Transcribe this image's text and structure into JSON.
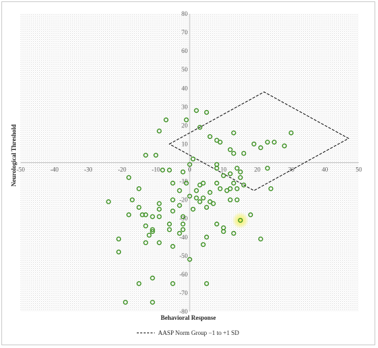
{
  "chart_data": {
    "type": "scatter",
    "title": "",
    "xlabel": "Behavioral Response",
    "ylabel": "Neurological Threshold",
    "xlim": [
      -50,
      50
    ],
    "ylim": [
      -80,
      80
    ],
    "x_ticks": [
      -50,
      -40,
      -30,
      -20,
      -10,
      0,
      10,
      20,
      30,
      40,
      50
    ],
    "y_ticks": [
      -80,
      -70,
      -60,
      -50,
      -40,
      -30,
      -20,
      -10,
      0,
      10,
      20,
      30,
      40,
      50,
      60,
      70,
      80
    ],
    "grid": false,
    "background": "dotted-gray",
    "marker_color": "#3a8f1f",
    "highlight_color": "#f4f27a",
    "legend": {
      "position": "bottom-center",
      "label": "AASP Norm Group −1 to +1 SD"
    },
    "norm_region": {
      "style": "dashed",
      "color": "#000000",
      "vertices": [
        [
          -6,
          10
        ],
        [
          22,
          38
        ],
        [
          47,
          13
        ],
        [
          19,
          -15
        ]
      ]
    },
    "highlighted_point": [
      15,
      -31
    ],
    "points": [
      [
        2,
        28
      ],
      [
        5,
        27
      ],
      [
        -1,
        23
      ],
      [
        -7,
        23
      ],
      [
        3,
        19
      ],
      [
        -9,
        17
      ],
      [
        13,
        16
      ],
      [
        30,
        16
      ],
      [
        6,
        14
      ],
      [
        8,
        12
      ],
      [
        9,
        11
      ],
      [
        25,
        11
      ],
      [
        23,
        11
      ],
      [
        28,
        9
      ],
      [
        19,
        10
      ],
      [
        21,
        8
      ],
      [
        12,
        7
      ],
      [
        13,
        5
      ],
      [
        16,
        5
      ],
      [
        -10,
        4
      ],
      [
        -13,
        4
      ],
      [
        1,
        2
      ],
      [
        0,
        -1
      ],
      [
        8,
        -1
      ],
      [
        8,
        -3
      ],
      [
        14,
        -3
      ],
      [
        23,
        -3
      ],
      [
        -6,
        -4
      ],
      [
        -8,
        -4
      ],
      [
        -2,
        -5
      ],
      [
        15,
        -5
      ],
      [
        12,
        -6
      ],
      [
        10,
        -7
      ],
      [
        15,
        -8
      ],
      [
        -18,
        -8
      ],
      [
        -1,
        -11
      ],
      [
        -5,
        -11
      ],
      [
        4,
        -11
      ],
      [
        8,
        -11
      ],
      [
        13,
        -11
      ],
      [
        3,
        -12
      ],
      [
        16,
        -12
      ],
      [
        -15,
        -14
      ],
      [
        12,
        -14
      ],
      [
        14,
        -14
      ],
      [
        24,
        -14
      ],
      [
        9,
        -14
      ],
      [
        11,
        -15
      ],
      [
        -3,
        -15
      ],
      [
        2,
        -15
      ],
      [
        6,
        -16
      ],
      [
        0,
        -18
      ],
      [
        4,
        -19
      ],
      [
        2,
        -19
      ],
      [
        -17,
        -20
      ],
      [
        -5,
        -20
      ],
      [
        6,
        -21
      ],
      [
        -24,
        -21
      ],
      [
        3,
        -21
      ],
      [
        14,
        -20
      ],
      [
        12,
        -20
      ],
      [
        7,
        -22
      ],
      [
        -9,
        -22
      ],
      [
        -3,
        -23
      ],
      [
        5,
        -24
      ],
      [
        -15,
        -24
      ],
      [
        -9,
        -25
      ],
      [
        1,
        -25
      ],
      [
        -5,
        -26
      ],
      [
        -14,
        -28
      ],
      [
        -13,
        -28
      ],
      [
        -18,
        -28
      ],
      [
        -9,
        -29
      ],
      [
        -11,
        -29
      ],
      [
        18,
        -28
      ],
      [
        -2,
        -29
      ],
      [
        -2,
        -33
      ],
      [
        -6,
        -33
      ],
      [
        8,
        -33
      ],
      [
        -13,
        -34
      ],
      [
        10,
        -35
      ],
      [
        -11,
        -36
      ],
      [
        -2,
        -36
      ],
      [
        -6,
        -36
      ],
      [
        13,
        -38
      ],
      [
        -3,
        -38
      ],
      [
        10,
        -37
      ],
      [
        -11,
        -37
      ],
      [
        -12,
        -39
      ],
      [
        -21,
        -41
      ],
      [
        5,
        -40
      ],
      [
        21,
        -41
      ],
      [
        -13,
        -43
      ],
      [
        -9,
        -43
      ],
      [
        4,
        -44
      ],
      [
        -5,
        -45
      ],
      [
        -21,
        -48
      ],
      [
        0,
        -52
      ],
      [
        -11,
        -62
      ],
      [
        -15,
        -65
      ],
      [
        5,
        -65
      ],
      [
        -5,
        -65
      ],
      [
        -19,
        -75
      ],
      [
        -11,
        -75
      ]
    ]
  }
}
